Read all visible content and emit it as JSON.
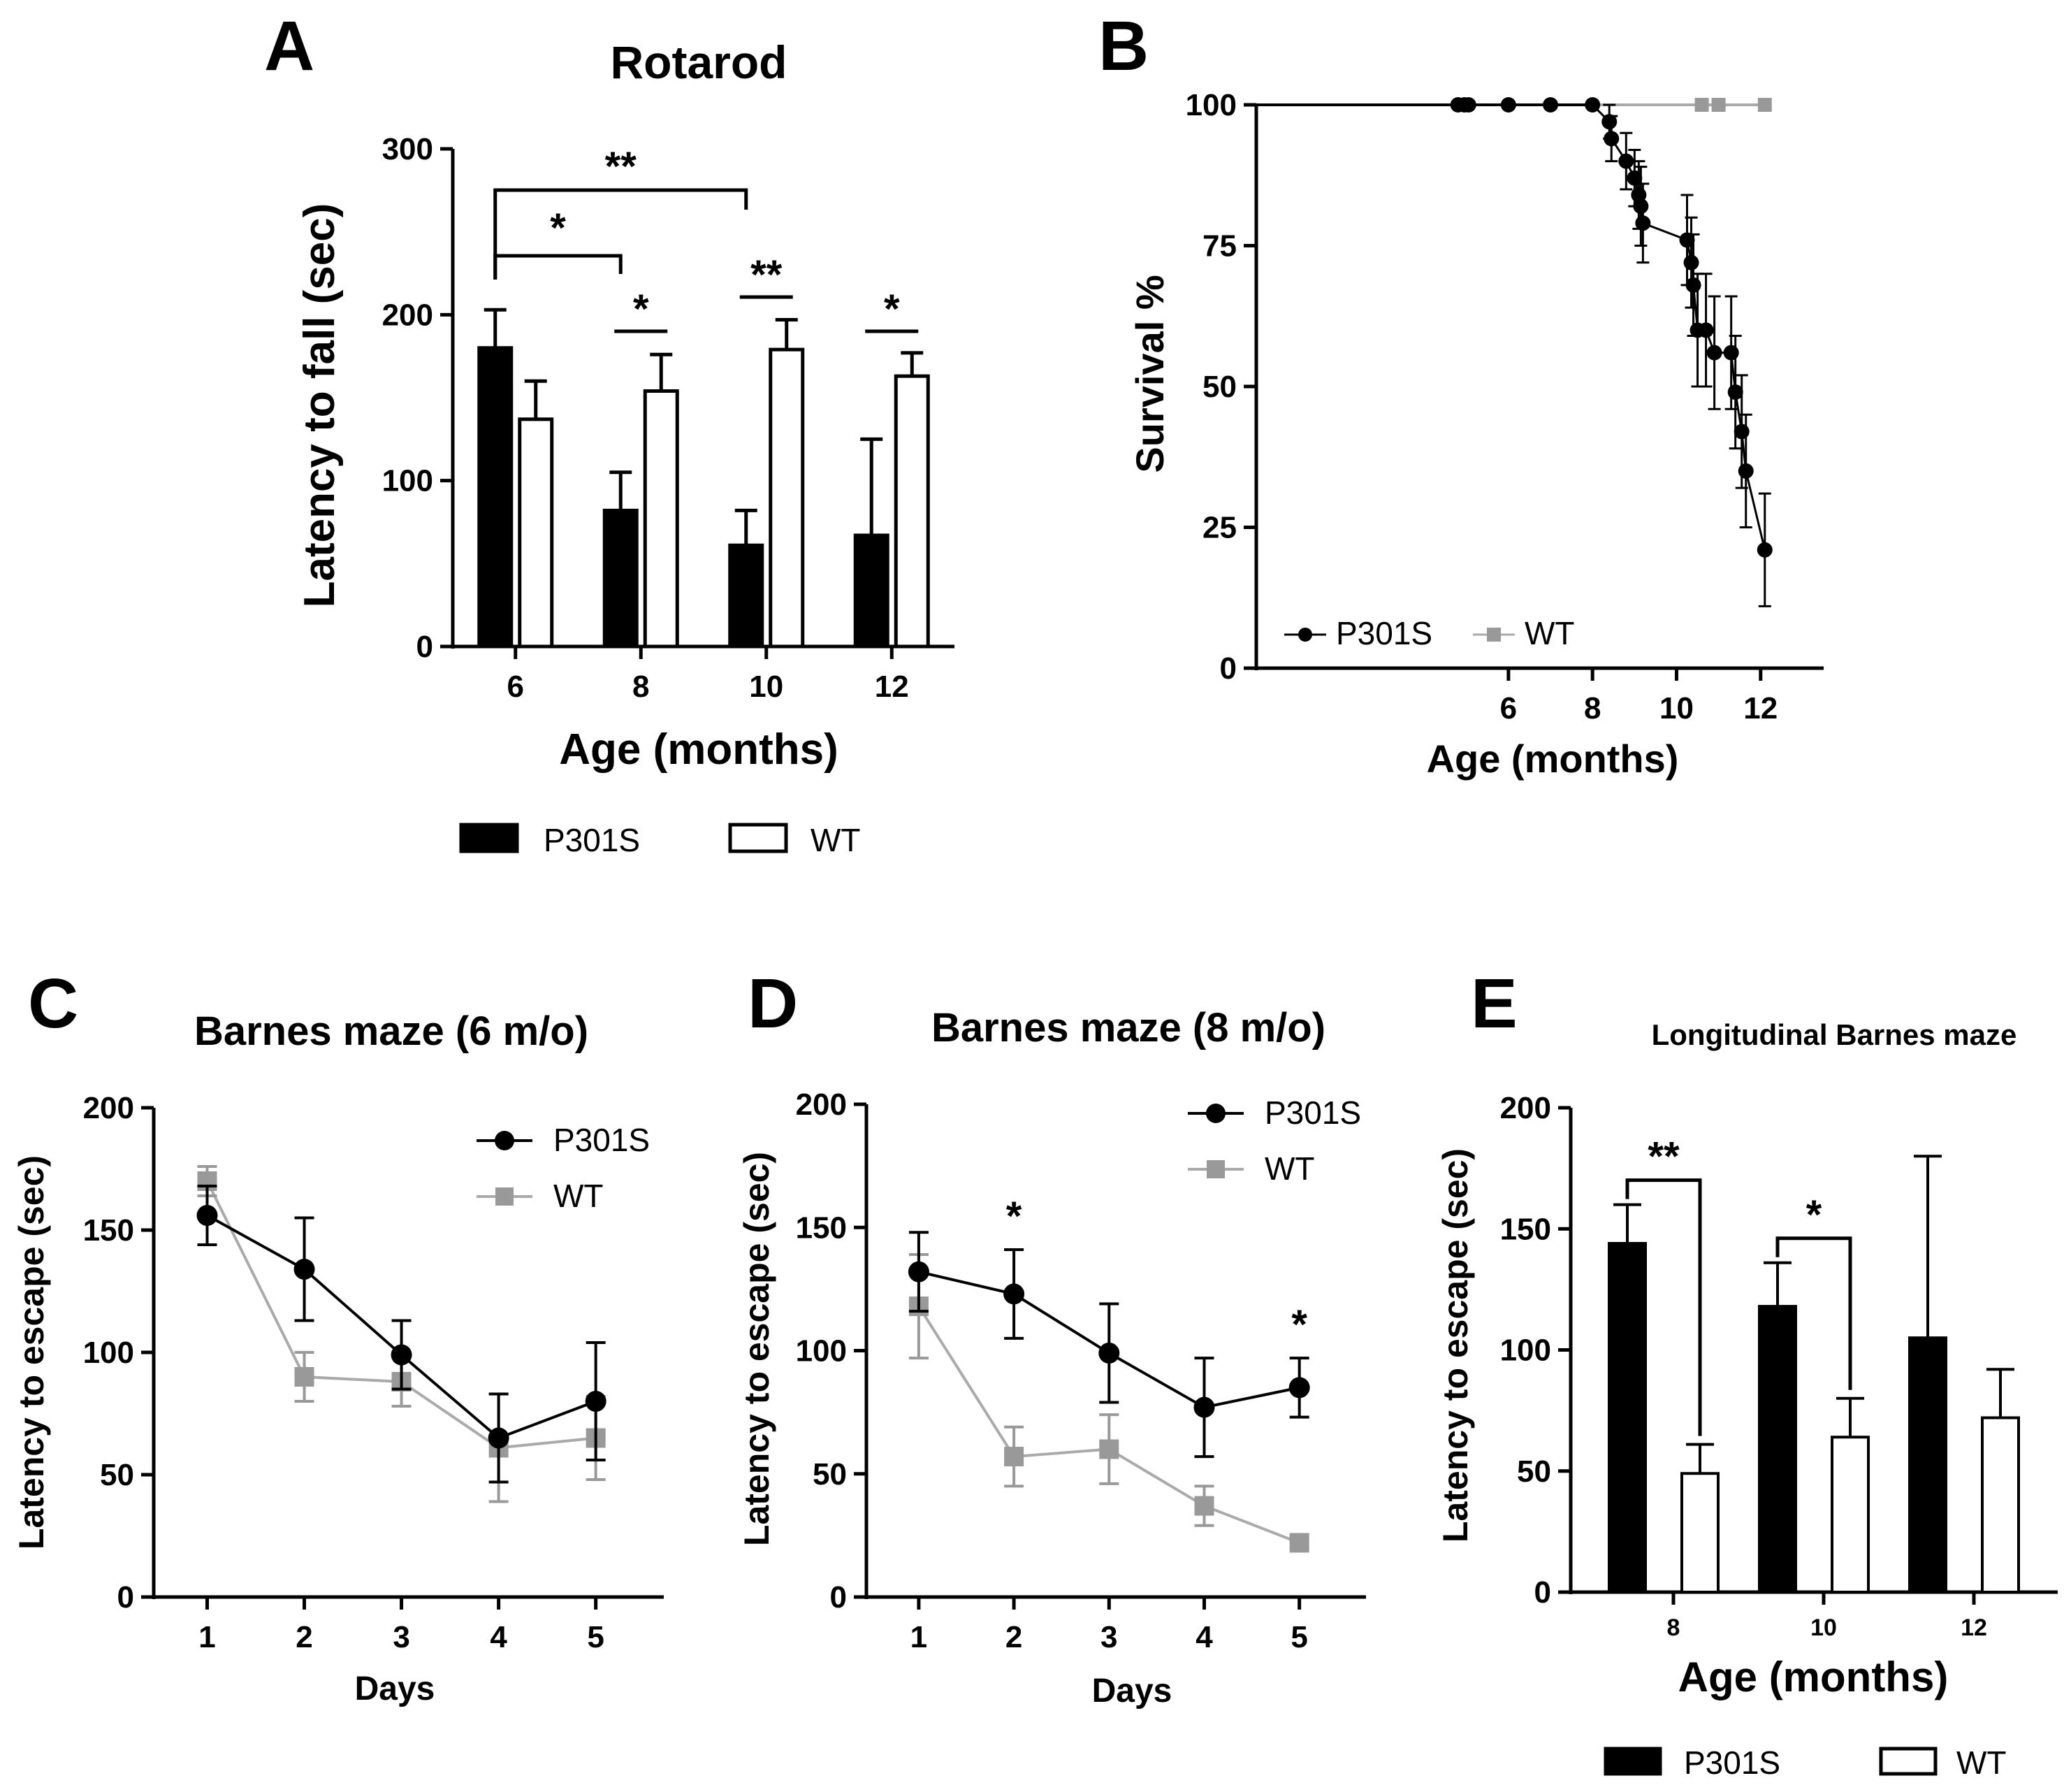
{
  "panels": [
    {
      "letter": "A",
      "chart_data": {
        "type": "bar",
        "title": "Rotarod",
        "xlabel": "Age (months)",
        "ylabel": "Latency to  fall (sec)",
        "categories": [
          "6",
          "8",
          "10",
          "12"
        ],
        "ylim": [
          0,
          300
        ],
        "yticks": [
          "0",
          "100",
          "200",
          "300"
        ],
        "series": [
          {
            "name": "P301S",
            "fill": "#000000",
            "values": [
              180,
              82,
              61,
              67
            ],
            "errors": [
              23,
              23,
              21,
              58
            ]
          },
          {
            "name": "WT",
            "fill": "#ffffff",
            "values": [
              137,
              154,
              179,
              163
            ],
            "errors": [
              23,
              22,
              18,
              14
            ]
          }
        ],
        "legend_position": "bottom",
        "significance": [
          {
            "label": "**",
            "type": "bracket",
            "from": "6",
            "to": "10"
          },
          {
            "label": "*",
            "type": "bracket",
            "from": "6",
            "to": "8"
          },
          {
            "label": "*",
            "type": "line",
            "at": "8"
          },
          {
            "label": "**",
            "type": "line",
            "at": "10"
          },
          {
            "label": "*",
            "type": "line",
            "at": "12"
          }
        ]
      }
    },
    {
      "letter": "B",
      "chart_data": {
        "type": "line",
        "title": "",
        "xlabel": "Age (months)",
        "ylabel": "Survival %",
        "xlim": [
          0,
          13.5
        ],
        "xticks": [
          "6",
          "8",
          "10",
          "12"
        ],
        "ylim": [
          0,
          100
        ],
        "yticks": [
          "0",
          "25",
          "50",
          "75",
          "100"
        ],
        "legend_position": "bottom-left",
        "series": [
          {
            "name": "P301S",
            "marker": "circle",
            "color": "#000000",
            "x": [
              4.8,
              4.95,
              5.05,
              6.0,
              7.0,
              8.0,
              8.4,
              8.45,
              8.8,
              9.0,
              9.1,
              9.15,
              9.2,
              10.25,
              10.35,
              10.4,
              10.5,
              10.7,
              10.9,
              11.3,
              11.4,
              11.55,
              11.65,
              12.1
            ],
            "y": [
              100,
              100,
              100,
              100,
              100,
              100,
              97,
              94,
              90,
              87,
              84,
              82,
              79,
              76,
              72,
              68,
              60,
              60,
              56,
              56,
              49,
              42,
              35,
              21
            ],
            "err": [
              0,
              0,
              0,
              0,
              0,
              0,
              3,
              4,
              5,
              5,
              6,
              7,
              7,
              8,
              8,
              9,
              10,
              10,
              10,
              10,
              10,
              10,
              10,
              10
            ]
          },
          {
            "name": "WT",
            "marker": "square",
            "color": "#999999",
            "x": [
              0,
              10.6,
              11.0,
              12.1
            ],
            "y": [
              100,
              100,
              100,
              100
            ],
            "err": [
              0,
              0,
              0,
              0
            ]
          }
        ]
      }
    },
    {
      "letter": "C",
      "chart_data": {
        "type": "line",
        "title": "Barnes maze (6 m/o)",
        "xlabel": "Days",
        "ylabel": "Latency to escape (sec)",
        "x": [
          "1",
          "2",
          "3",
          "4",
          "5"
        ],
        "ylim": [
          0,
          200
        ],
        "yticks": [
          "0",
          "50",
          "100",
          "150",
          "200"
        ],
        "legend_position": "top-right",
        "series": [
          {
            "name": "P301S",
            "marker": "circle",
            "color": "#000000",
            "values": [
              156,
              134,
              99,
              65,
              80
            ],
            "errors": [
              12,
              21,
              14,
              18,
              24
            ]
          },
          {
            "name": "WT",
            "marker": "square",
            "color": "#999999",
            "values": [
              170,
              90,
              88,
              61,
              65
            ],
            "errors": [
              6,
              10,
              10,
              22,
              17
            ]
          }
        ]
      }
    },
    {
      "letter": "D",
      "chart_data": {
        "type": "line",
        "title": "Barnes maze (8 m/o)",
        "xlabel": "Days",
        "ylabel": "Latency to escape (sec)",
        "x": [
          "1",
          "2",
          "3",
          "4",
          "5"
        ],
        "ylim": [
          0,
          200
        ],
        "yticks": [
          "0",
          "50",
          "100",
          "150",
          "200"
        ],
        "legend_position": "top-right",
        "series": [
          {
            "name": "P301S",
            "marker": "circle",
            "color": "#000000",
            "values": [
              132,
              123,
              99,
              77,
              85
            ],
            "errors": [
              16,
              18,
              20,
              20,
              12
            ]
          },
          {
            "name": "WT",
            "marker": "square",
            "color": "#999999",
            "values": [
              118,
              57,
              60,
              37,
              22
            ],
            "errors": [
              21,
              12,
              14,
              8,
              2
            ]
          }
        ],
        "significance": [
          {
            "label": "*",
            "at": "2"
          },
          {
            "label": "*",
            "at": "5"
          }
        ]
      }
    },
    {
      "letter": "E",
      "chart_data": {
        "type": "bar",
        "title": "Longitudinal Barnes maze",
        "xlabel": "Age (months)",
        "ylabel": "Latency to escape (sec)",
        "categories": [
          "8",
          "10",
          "12"
        ],
        "ylim": [
          0,
          200
        ],
        "yticks": [
          "0",
          "50",
          "100",
          "150",
          "200"
        ],
        "legend_position": "bottom",
        "series": [
          {
            "name": "P301S",
            "fill": "#000000",
            "values": [
              144,
              118,
              105
            ],
            "errors": [
              16,
              18,
              75
            ]
          },
          {
            "name": "WT",
            "fill": "#ffffff",
            "values": [
              49,
              64,
              72
            ],
            "errors": [
              12,
              16,
              20
            ]
          }
        ],
        "significance": [
          {
            "label": "**",
            "at": "8"
          },
          {
            "label": "*",
            "at": "10"
          }
        ]
      }
    }
  ]
}
